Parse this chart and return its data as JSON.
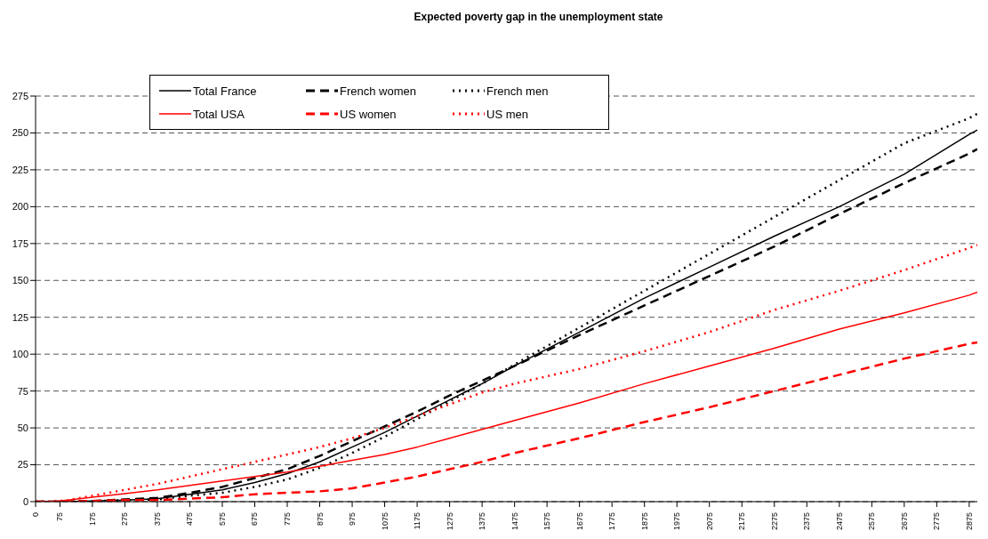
{
  "chart_data": {
    "type": "line",
    "title": "Expected poverty gap in the unemployment state",
    "x": [
      0,
      50,
      100,
      175,
      275,
      375,
      475,
      575,
      675,
      775,
      875,
      975,
      1075,
      1175,
      1275,
      1375,
      1475,
      1675,
      1875,
      2075,
      2275,
      2475,
      2675,
      2875,
      2900
    ],
    "series": [
      {
        "name": "Total France",
        "color": "#000000",
        "line_style": "solid",
        "values": [
          0,
          0,
          0,
          0.5,
          1,
          2,
          5,
          8,
          13,
          19,
          27,
          37,
          47,
          58,
          69,
          80,
          92,
          115,
          138,
          159,
          180,
          200,
          222,
          249,
          252
        ]
      },
      {
        "name": "French women",
        "color": "#000000",
        "line_style": "dashed",
        "values": [
          0,
          0,
          0,
          0.5,
          1.5,
          2.5,
          6,
          10,
          16,
          22,
          31,
          41,
          51,
          61,
          72,
          82,
          92,
          113,
          133,
          153,
          173,
          195,
          216,
          236,
          239
        ]
      },
      {
        "name": "French men",
        "color": "#000000",
        "line_style": "dotted",
        "values": [
          0,
          0,
          0,
          0.3,
          1,
          1.5,
          4,
          6,
          10,
          15,
          23,
          33,
          44,
          56,
          68,
          80,
          93,
          118,
          143,
          168,
          193,
          218,
          243,
          260,
          263
        ]
      },
      {
        "name": "Total USA",
        "color": "#ff0000",
        "line_style": "solid",
        "values": [
          0,
          0,
          1,
          3,
          5.5,
          8,
          11,
          14,
          17,
          20,
          24,
          28,
          32,
          37,
          43,
          49,
          55,
          67,
          80,
          92,
          104,
          117,
          128,
          140,
          142
        ]
      },
      {
        "name": "US women",
        "color": "#ff0000",
        "line_style": "dashed",
        "values": [
          0,
          0,
          0,
          0.5,
          1,
          1,
          2,
          3,
          5,
          6,
          7,
          9,
          13,
          17,
          22,
          27,
          33,
          43,
          54,
          64,
          75,
          86,
          97,
          107,
          108
        ]
      },
      {
        "name": "US men",
        "color": "#ff0000",
        "line_style": "dotted",
        "values": [
          0,
          0,
          1,
          4,
          8,
          12,
          17,
          22,
          27,
          32,
          37,
          43,
          50,
          58,
          66,
          74,
          80,
          90,
          102,
          115,
          130,
          143,
          157,
          172,
          174
        ]
      }
    ],
    "xlim": [
      0,
      2900
    ],
    "xticks": [
      0,
      75,
      175,
      275,
      375,
      475,
      575,
      675,
      775,
      875,
      975,
      1075,
      1175,
      1275,
      1375,
      1475,
      1575,
      1675,
      1775,
      1875,
      1975,
      2075,
      2175,
      2275,
      2375,
      2475,
      2575,
      2675,
      2775,
      2875
    ],
    "ylim": [
      0,
      275
    ],
    "yticks": [
      0,
      25,
      50,
      75,
      100,
      125,
      150,
      175,
      200,
      225,
      250,
      275
    ],
    "grid": "y",
    "legend": "top left",
    "marker": "none"
  }
}
